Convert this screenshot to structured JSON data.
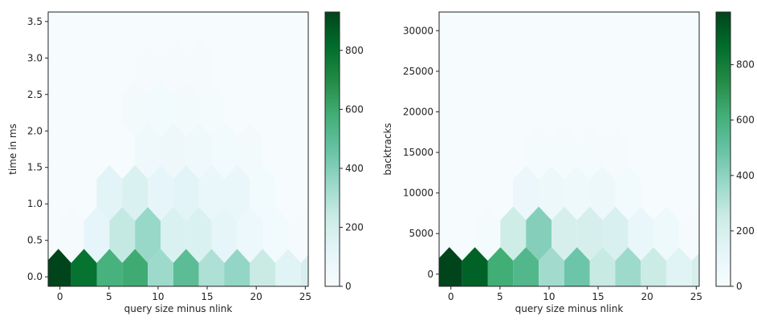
{
  "chart_data": [
    {
      "type": "heatmap",
      "subtype": "hexbin",
      "title": "",
      "xlabel": "query size minus nlink",
      "ylabel": "time in ms",
      "xlim": [
        -1.2,
        25.3
      ],
      "ylim": [
        -0.13,
        3.63
      ],
      "xticks": [
        0,
        5,
        10,
        15,
        20,
        25
      ],
      "xtick_labels": [
        "0",
        "5",
        "10",
        "15",
        "20",
        "25"
      ],
      "yticks": [
        0.0,
        0.5,
        1.0,
        1.5,
        2.0,
        2.5,
        3.0,
        3.5
      ],
      "ytick_labels": [
        "0.0",
        "0.5",
        "1.0",
        "1.5",
        "2.0",
        "2.5",
        "3.0",
        "3.5"
      ],
      "colormap": "BuGn",
      "colorbar": {
        "min": 0,
        "max": 930,
        "ticks": [
          0,
          200,
          400,
          600,
          800
        ],
        "tick_labels": [
          "0",
          "200",
          "400",
          "600",
          "800"
        ]
      },
      "hex_grid": {
        "x0": -0.15,
        "dx": 2.6,
        "y0": 0.0,
        "dy": 0.575
      },
      "hex_cells": [
        {
          "row": 0,
          "col": 0,
          "count": 930
        },
        {
          "row": 0,
          "col": 1,
          "count": 790
        },
        {
          "row": 0,
          "col": 2,
          "count": 560
        },
        {
          "row": 0,
          "col": 3,
          "count": 590
        },
        {
          "row": 0,
          "col": 4,
          "count": 340
        },
        {
          "row": 0,
          "col": 5,
          "count": 500
        },
        {
          "row": 0,
          "col": 6,
          "count": 300
        },
        {
          "row": 0,
          "col": 7,
          "count": 360
        },
        {
          "row": 0,
          "col": 8,
          "count": 240
        },
        {
          "row": 0,
          "col": 9,
          "count": 140
        },
        {
          "row": 0,
          "col": 10,
          "count": 180
        },
        {
          "row": 1,
          "col": 0,
          "count": 15
        },
        {
          "row": 1,
          "col": 1,
          "count": 110
        },
        {
          "row": 1,
          "col": 2,
          "count": 250
        },
        {
          "row": 1,
          "col": 3,
          "count": 350
        },
        {
          "row": 1,
          "col": 4,
          "count": 170
        },
        {
          "row": 1,
          "col": 5,
          "count": 170
        },
        {
          "row": 1,
          "col": 6,
          "count": 110
        },
        {
          "row": 1,
          "col": 7,
          "count": 70
        },
        {
          "row": 1,
          "col": 8,
          "count": 40
        },
        {
          "row": 1,
          "col": 9,
          "count": 10
        },
        {
          "row": 2,
          "col": 2,
          "count": 130
        },
        {
          "row": 2,
          "col": 3,
          "count": 170
        },
        {
          "row": 2,
          "col": 4,
          "count": 110
        },
        {
          "row": 2,
          "col": 5,
          "count": 130
        },
        {
          "row": 2,
          "col": 6,
          "count": 90
        },
        {
          "row": 2,
          "col": 7,
          "count": 90
        },
        {
          "row": 2,
          "col": 8,
          "count": 40
        },
        {
          "row": 3,
          "col": 3,
          "count": 50
        },
        {
          "row": 3,
          "col": 4,
          "count": 60
        },
        {
          "row": 3,
          "col": 5,
          "count": 50
        },
        {
          "row": 3,
          "col": 6,
          "count": 40
        },
        {
          "row": 3,
          "col": 7,
          "count": 30
        },
        {
          "row": 4,
          "col": 3,
          "count": 35
        },
        {
          "row": 4,
          "col": 4,
          "count": 40
        },
        {
          "row": 4,
          "col": 5,
          "count": 30
        },
        {
          "row": 4,
          "col": 6,
          "count": 20
        },
        {
          "row": 5,
          "col": 3,
          "count": 15
        },
        {
          "row": 5,
          "col": 4,
          "count": 15
        },
        {
          "row": 5,
          "col": 5,
          "count": 10
        },
        {
          "row": 6,
          "col": 4,
          "count": 5
        }
      ]
    },
    {
      "type": "heatmap",
      "subtype": "hexbin",
      "title": "",
      "xlabel": "query size minus nlink",
      "ylabel": "backtracks",
      "xlim": [
        -1.2,
        25.3
      ],
      "ylim": [
        -1500,
        32300
      ],
      "xticks": [
        0,
        5,
        10,
        15,
        20,
        25
      ],
      "xtick_labels": [
        "0",
        "5",
        "10",
        "15",
        "20",
        "25"
      ],
      "yticks": [
        0,
        5000,
        10000,
        15000,
        20000,
        25000,
        30000
      ],
      "ytick_labels": [
        "0",
        "5000",
        "10000",
        "15000",
        "20000",
        "25000",
        "30000"
      ],
      "colormap": "BuGn",
      "colorbar": {
        "min": 0,
        "max": 990,
        "ticks": [
          0,
          200,
          400,
          600,
          800
        ],
        "tick_labels": [
          "0",
          "200",
          "400",
          "600",
          "800"
        ]
      },
      "hex_grid": {
        "x0": -0.15,
        "dx": 2.6,
        "y0": 0,
        "dy": 5000
      },
      "hex_cells": [
        {
          "row": 0,
          "col": 0,
          "count": 990
        },
        {
          "row": 0,
          "col": 1,
          "count": 900
        },
        {
          "row": 0,
          "col": 2,
          "count": 620
        },
        {
          "row": 0,
          "col": 3,
          "count": 560
        },
        {
          "row": 0,
          "col": 4,
          "count": 350
        },
        {
          "row": 0,
          "col": 5,
          "count": 480
        },
        {
          "row": 0,
          "col": 6,
          "count": 260
        },
        {
          "row": 0,
          "col": 7,
          "count": 360
        },
        {
          "row": 0,
          "col": 8,
          "count": 250
        },
        {
          "row": 0,
          "col": 9,
          "count": 150
        },
        {
          "row": 0,
          "col": 10,
          "count": 200
        },
        {
          "row": 1,
          "col": 1,
          "count": 20
        },
        {
          "row": 1,
          "col": 2,
          "count": 240
        },
        {
          "row": 1,
          "col": 3,
          "count": 420
        },
        {
          "row": 1,
          "col": 4,
          "count": 200
        },
        {
          "row": 1,
          "col": 5,
          "count": 200
        },
        {
          "row": 1,
          "col": 6,
          "count": 190
        },
        {
          "row": 1,
          "col": 7,
          "count": 90
        },
        {
          "row": 1,
          "col": 8,
          "count": 60
        },
        {
          "row": 1,
          "col": 9,
          "count": 15
        },
        {
          "row": 2,
          "col": 3,
          "count": 80
        },
        {
          "row": 2,
          "col": 4,
          "count": 70
        },
        {
          "row": 2,
          "col": 5,
          "count": 60
        },
        {
          "row": 2,
          "col": 6,
          "count": 70
        },
        {
          "row": 2,
          "col": 7,
          "count": 40
        },
        {
          "row": 3,
          "col": 3,
          "count": 20
        },
        {
          "row": 3,
          "col": 4,
          "count": 25
        },
        {
          "row": 3,
          "col": 5,
          "count": 20
        },
        {
          "row": 3,
          "col": 6,
          "count": 15
        },
        {
          "row": 4,
          "col": 4,
          "count": 10
        },
        {
          "row": 4,
          "col": 5,
          "count": 5
        }
      ]
    }
  ]
}
